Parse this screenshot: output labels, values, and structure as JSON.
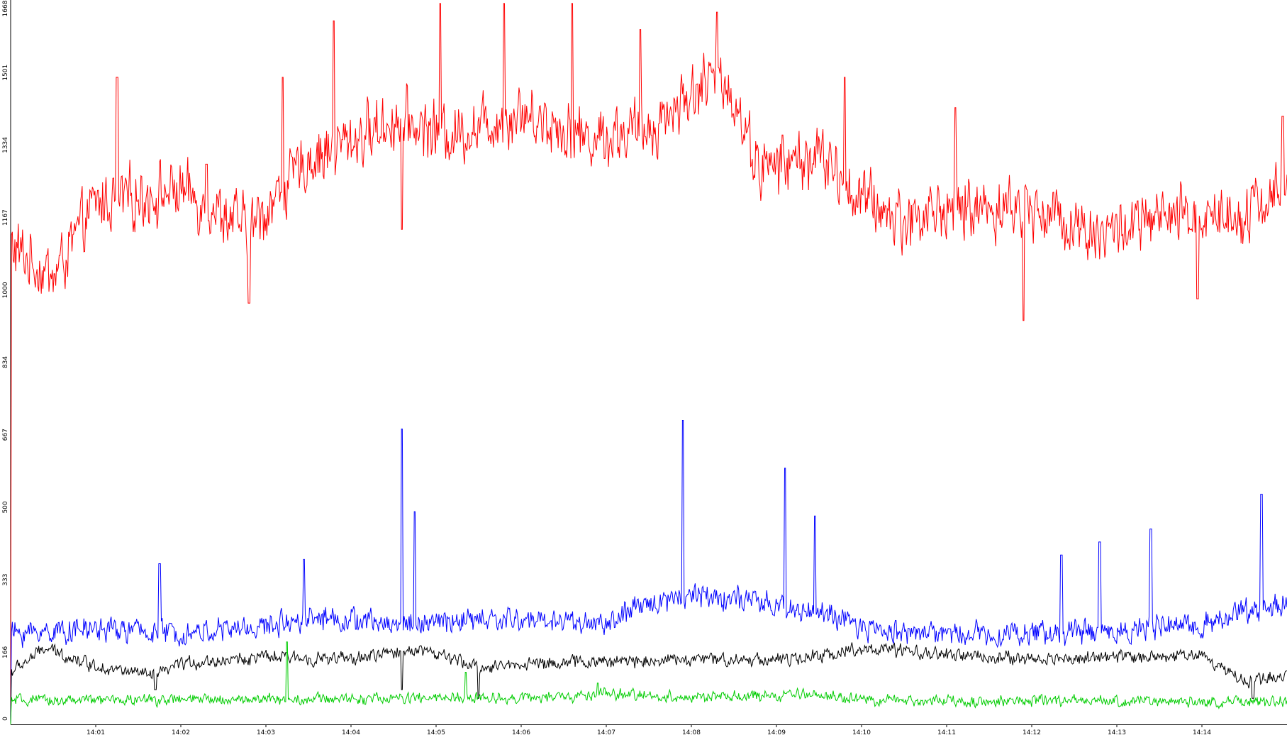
{
  "chart_data": {
    "type": "line",
    "title": "",
    "xlabel": "",
    "ylabel": "",
    "ylim": [
      0,
      1668
    ],
    "y_ticks": [
      "0",
      "166",
      "333",
      "500",
      "667",
      "834",
      "1000",
      "1167",
      "1334",
      "1501",
      "1668"
    ],
    "x_ticks": [
      "14:01",
      "14:02",
      "14:03",
      "14:04",
      "14:05",
      "14:06",
      "14:07",
      "14:08",
      "14:09",
      "14:10",
      "14:11",
      "14:12",
      "14:13",
      "14:14"
    ],
    "x_range_minutes": [
      0,
      15
    ],
    "samples_per_series": 1500,
    "series": [
      {
        "color": "#ff0000",
        "trend": [
          [
            0,
            1100
          ],
          [
            0.5,
            1030
          ],
          [
            1,
            1200
          ],
          [
            2,
            1230
          ],
          [
            2.8,
            1140
          ],
          [
            3.5,
            1300
          ],
          [
            4.5,
            1390
          ],
          [
            5.2,
            1360
          ],
          [
            6,
            1410
          ],
          [
            6.8,
            1350
          ],
          [
            7.5,
            1370
          ],
          [
            8.1,
            1470
          ],
          [
            8.4,
            1490
          ],
          [
            8.8,
            1280
          ],
          [
            9.5,
            1310
          ],
          [
            10,
            1210
          ],
          [
            10.5,
            1160
          ],
          [
            11,
            1190
          ],
          [
            12,
            1190
          ],
          [
            12.8,
            1130
          ],
          [
            13.5,
            1160
          ],
          [
            14.5,
            1180
          ],
          [
            15,
            1240
          ]
        ],
        "noise": 55,
        "spikes": [
          [
            1.25,
            1490
          ],
          [
            2.3,
            1290
          ],
          [
            2.8,
            970
          ],
          [
            3.2,
            1490
          ],
          [
            3.8,
            1620
          ],
          [
            4.6,
            1140
          ],
          [
            5.05,
            1660
          ],
          [
            5.8,
            1660
          ],
          [
            6.6,
            1660
          ],
          [
            7.4,
            1600
          ],
          [
            8.3,
            1640
          ],
          [
            9.8,
            1490
          ],
          [
            11.1,
            1420
          ],
          [
            11.9,
            930
          ],
          [
            13.95,
            980
          ],
          [
            14.95,
            1400
          ]
        ]
      },
      {
        "color": "#0000ff",
        "trend": [
          [
            0,
            210
          ],
          [
            1,
            220
          ],
          [
            2,
            210
          ],
          [
            3,
            225
          ],
          [
            3.5,
            250
          ],
          [
            4.5,
            230
          ],
          [
            5.5,
            240
          ],
          [
            6.5,
            240
          ],
          [
            7,
            230
          ],
          [
            7.5,
            280
          ],
          [
            8,
            300
          ],
          [
            8.5,
            290
          ],
          [
            9,
            270
          ],
          [
            9.5,
            260
          ],
          [
            10,
            220
          ],
          [
            11,
            210
          ],
          [
            12,
            210
          ],
          [
            13,
            215
          ],
          [
            14,
            230
          ],
          [
            14.5,
            260
          ],
          [
            15,
            280
          ]
        ],
        "noise": 22,
        "spikes": [
          [
            1.75,
            370
          ],
          [
            3.45,
            380
          ],
          [
            4.6,
            680
          ],
          [
            4.75,
            490
          ],
          [
            7.9,
            700
          ],
          [
            9.1,
            590
          ],
          [
            9.45,
            480
          ],
          [
            12.35,
            390
          ],
          [
            12.8,
            420
          ],
          [
            13.4,
            450
          ],
          [
            14.7,
            530
          ]
        ]
      },
      {
        "color": "#000000",
        "trend": [
          [
            0,
            120
          ],
          [
            0.4,
            175
          ],
          [
            1,
            135
          ],
          [
            1.7,
            110
          ],
          [
            2,
            140
          ],
          [
            3,
            155
          ],
          [
            4,
            150
          ],
          [
            4.8,
            175
          ],
          [
            5.5,
            130
          ],
          [
            6,
            140
          ],
          [
            7,
            145
          ],
          [
            8,
            150
          ],
          [
            8.7,
            150
          ],
          [
            9.3,
            150
          ],
          [
            10,
            175
          ],
          [
            11,
            160
          ],
          [
            12,
            150
          ],
          [
            13,
            155
          ],
          [
            14,
            160
          ],
          [
            14.5,
            100
          ],
          [
            15,
            115
          ]
        ],
        "noise": 12,
        "spikes": [
          [
            1.7,
            80
          ],
          [
            4.6,
            80
          ],
          [
            5.5,
            60
          ],
          [
            14.6,
            60
          ]
        ]
      },
      {
        "color": "#00cc00",
        "trend": [
          [
            0,
            55
          ],
          [
            3,
            58
          ],
          [
            6.5,
            62
          ],
          [
            7,
            70
          ],
          [
            8,
            62
          ],
          [
            9,
            65
          ],
          [
            9.5,
            70
          ],
          [
            10,
            55
          ],
          [
            15,
            52
          ]
        ],
        "noise": 10,
        "spikes": [
          [
            3.25,
            190
          ],
          [
            5.35,
            120
          ],
          [
            6.9,
            95
          ]
        ]
      }
    ]
  }
}
